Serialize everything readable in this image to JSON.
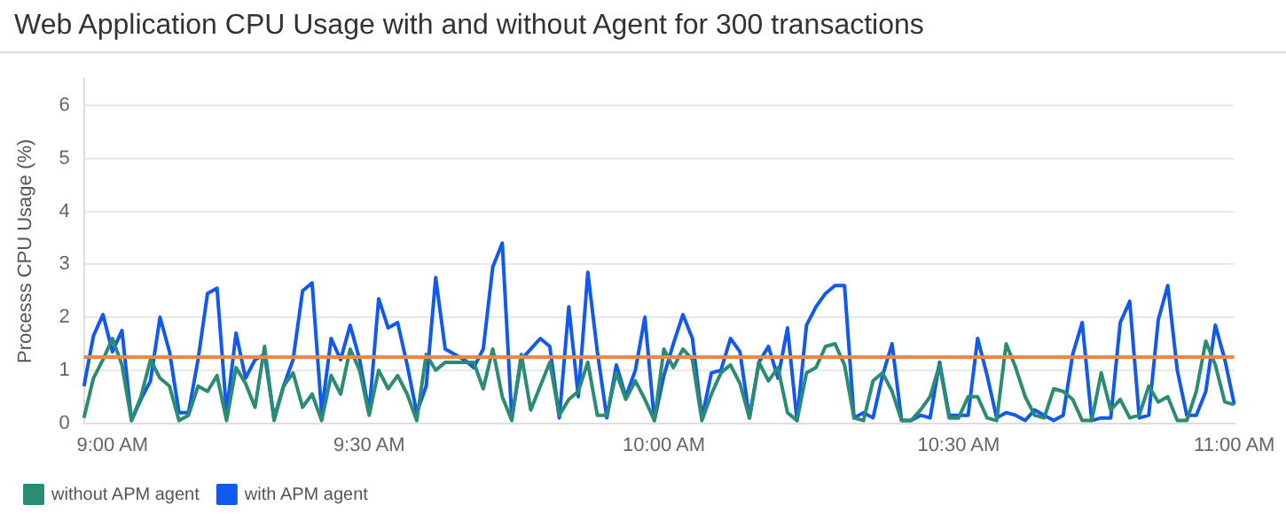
{
  "chart_data": {
    "type": "line",
    "title": "Web Application CPU Usage with and without Agent for 300 transactions",
    "ylabel": "Processs CPU Usage (%)",
    "categories": [
      null,
      null,
      null,
      "9:00 AM",
      null,
      null,
      null,
      null,
      null,
      null,
      null,
      null,
      null,
      null,
      null,
      null,
      null,
      null,
      null,
      null,
      null,
      null,
      null,
      null,
      null,
      null,
      null,
      null,
      null,
      null,
      "9:30 AM",
      null,
      null,
      null,
      null,
      null,
      null,
      null,
      null,
      null,
      null,
      null,
      null,
      null,
      null,
      null,
      null,
      null,
      null,
      null,
      null,
      null,
      null,
      null,
      null,
      null,
      null,
      null,
      null,
      null,
      null,
      "10:00 AM",
      null,
      null,
      null,
      null,
      null,
      null,
      null,
      null,
      null,
      null,
      null,
      null,
      null,
      null,
      null,
      null,
      null,
      null,
      null,
      null,
      null,
      null,
      null,
      null,
      null,
      null,
      null,
      null,
      null,
      null,
      "10:30 AM",
      null,
      null,
      null,
      null,
      null,
      null,
      null,
      null,
      null,
      null,
      null,
      null,
      null,
      null,
      null,
      null,
      null,
      null,
      null,
      null,
      null,
      null,
      null,
      null,
      null,
      null,
      null,
      null,
      "11:00 AM"
    ],
    "series": [
      {
        "name": "without APM agent",
        "color": "#2a8c72",
        "values": [
          0.1,
          0.85,
          1.2,
          1.6,
          1.1,
          0.05,
          0.5,
          1.2,
          0.85,
          0.7,
          0.05,
          0.15,
          0.7,
          0.6,
          0.9,
          0.05,
          1.05,
          0.75,
          0.3,
          1.45,
          0.05,
          0.7,
          0.95,
          0.3,
          0.55,
          0.05,
          0.9,
          0.55,
          1.4,
          1.0,
          0.15,
          1.0,
          0.65,
          0.9,
          0.55,
          0.05,
          1.3,
          1.0,
          1.15,
          1.15,
          1.15,
          1.15,
          0.65,
          1.4,
          0.5,
          0.05,
          1.3,
          0.25,
          0.7,
          1.15,
          0.15,
          0.45,
          0.6,
          1.15,
          0.15,
          0.15,
          0.95,
          0.45,
          0.8,
          0.45,
          0.05,
          1.4,
          1.05,
          1.4,
          1.2,
          0.05,
          0.55,
          0.95,
          1.1,
          0.75,
          0.1,
          1.15,
          0.8,
          1.05,
          0.2,
          0.05,
          0.95,
          1.05,
          1.45,
          1.5,
          1.1,
          0.1,
          0.05,
          0.8,
          0.95,
          0.6,
          0.05,
          0.05,
          0.25,
          0.5,
          1.1,
          0.1,
          0.1,
          0.5,
          0.5,
          0.1,
          0.05,
          1.5,
          1.05,
          0.5,
          0.15,
          0.1,
          0.65,
          0.6,
          0.45,
          0.05,
          0.05,
          0.95,
          0.25,
          0.45,
          0.1,
          0.15,
          0.7,
          0.4,
          0.5,
          0.05,
          0.05,
          0.6,
          1.55,
          1.1,
          0.4,
          0.35
        ]
      },
      {
        "name": "with APM agent",
        "color": "#1259f0",
        "values": [
          0.7,
          1.65,
          2.05,
          1.35,
          1.75,
          0.05,
          0.45,
          0.8,
          2.0,
          1.35,
          0.2,
          0.2,
          1.2,
          2.45,
          2.55,
          0.2,
          1.7,
          0.85,
          1.2,
          1.3,
          0.1,
          0.7,
          1.2,
          2.5,
          2.65,
          0.2,
          1.6,
          1.2,
          1.85,
          1.2,
          0.2,
          2.35,
          1.8,
          1.9,
          1.1,
          0.2,
          0.7,
          2.75,
          1.4,
          1.3,
          1.2,
          1.05,
          1.4,
          2.95,
          3.4,
          0.1,
          1.2,
          1.4,
          1.6,
          1.45,
          0.1,
          2.2,
          0.5,
          2.85,
          1.35,
          0.1,
          1.1,
          0.5,
          1.0,
          2.0,
          0.05,
          0.9,
          1.5,
          2.05,
          1.6,
          0.1,
          0.95,
          1.0,
          1.6,
          1.35,
          0.1,
          1.15,
          1.45,
          0.85,
          1.8,
          0.05,
          1.85,
          2.2,
          2.45,
          2.6,
          2.6,
          0.1,
          0.2,
          0.1,
          0.9,
          1.5,
          0.05,
          0.05,
          0.15,
          0.1,
          1.15,
          0.15,
          0.15,
          0.15,
          1.6,
          0.9,
          0.1,
          0.2,
          0.15,
          0.05,
          0.25,
          0.15,
          0.05,
          0.15,
          1.3,
          1.9,
          0.05,
          0.1,
          0.1,
          1.9,
          2.3,
          0.1,
          0.15,
          1.95,
          2.6,
          1.0,
          0.15,
          0.15,
          0.6,
          1.85,
          1.2,
          0.35
        ]
      }
    ],
    "ylim": [
      0,
      6.5
    ],
    "yticks": [
      0,
      1,
      2,
      3,
      4,
      5,
      6
    ],
    "grid": "y",
    "legend": "bottom left",
    "marker": "none",
    "line_style": "solid",
    "ref_lines": [
      {
        "axis": "y",
        "value": 1.25,
        "color": "#e8884a"
      }
    ]
  }
}
